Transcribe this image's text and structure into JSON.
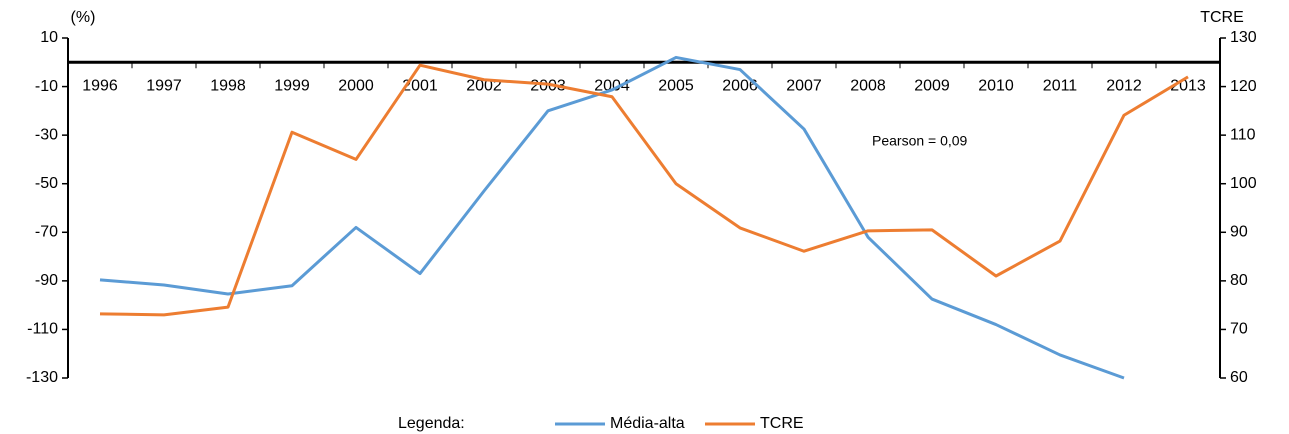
{
  "chart_data": {
    "type": "line",
    "y_label": "(%)",
    "y2_label": "TCRE",
    "annotation": "Pearson = 0,09",
    "legend_title": "Legenda:",
    "categories": [
      "1996",
      "1997",
      "1998",
      "1999",
      "2000",
      "2001",
      "2002",
      "2003",
      "2004",
      "2005",
      "2006",
      "2007",
      "2008",
      "2009",
      "2010",
      "2011",
      "2012",
      "2013"
    ],
    "series": [
      {
        "name": "Média-alta",
        "color": "#5b9bd5",
        "axis": "y",
        "values": [
          -89.6,
          -91.7,
          -95.4,
          -92,
          -68,
          -87,
          -53,
          -20,
          -11.4,
          2,
          -3,
          -27.5,
          -72,
          -97.5,
          -108,
          -120.5,
          -130,
          null
        ]
      },
      {
        "name": "TCRE",
        "color": "#ed7d31",
        "axis": "y2",
        "values": [
          73.2,
          73,
          74.6,
          110.6,
          105,
          124.4,
          121.4,
          120.5,
          117.9,
          100,
          90.9,
          86.1,
          90.3,
          90.5,
          81,
          88.2,
          114.1,
          122
        ]
      }
    ],
    "ylim": [
      -130,
      10
    ],
    "yticks": [
      10,
      -10,
      -30,
      -50,
      -70,
      -90,
      -110,
      -130
    ],
    "y2lim": [
      60,
      130
    ],
    "y2ticks": [
      130,
      120,
      110,
      100,
      90,
      80,
      70,
      60
    ],
    "grid": false
  }
}
